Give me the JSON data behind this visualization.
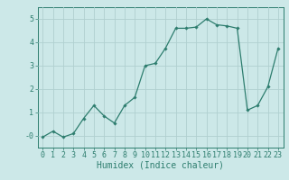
{
  "x": [
    0,
    1,
    2,
    3,
    4,
    5,
    6,
    7,
    8,
    9,
    10,
    11,
    12,
    13,
    14,
    15,
    16,
    17,
    18,
    19,
    20,
    21,
    22,
    23
  ],
  "y": [
    -0.05,
    0.2,
    -0.05,
    0.1,
    0.75,
    1.3,
    0.85,
    0.55,
    1.3,
    1.65,
    3.0,
    3.1,
    3.75,
    4.6,
    4.6,
    4.65,
    5.0,
    4.75,
    4.7,
    4.6,
    1.1,
    1.3,
    2.1,
    3.75
  ],
  "xlabel": "Humidex (Indice chaleur)",
  "ylim": [
    -0.5,
    5.5
  ],
  "xlim": [
    -0.5,
    23.5
  ],
  "yticks": [
    0,
    1,
    2,
    3,
    4,
    5
  ],
  "ytick_labels": [
    "-0",
    "1",
    "2",
    "3",
    "4",
    "5"
  ],
  "xticks": [
    0,
    1,
    2,
    3,
    4,
    5,
    6,
    7,
    8,
    9,
    10,
    11,
    12,
    13,
    14,
    15,
    16,
    17,
    18,
    19,
    20,
    21,
    22,
    23
  ],
  "line_color": "#2d7d6e",
  "marker": "D",
  "marker_size": 1.8,
  "bg_color": "#cce8e8",
  "grid_color": "#b0d0d0",
  "axis_color": "#2d7d6e",
  "tick_label_color": "#2d7d6e",
  "xlabel_color": "#2d7d6e",
  "xlabel_fontsize": 7,
  "tick_fontsize": 6
}
